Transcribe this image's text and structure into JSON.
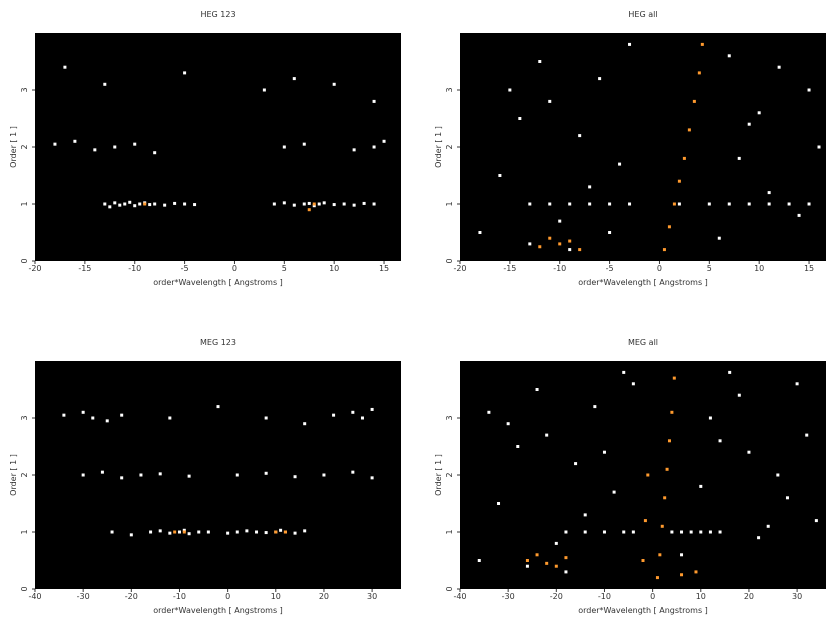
{
  "chart_data": [
    {
      "type": "scatter",
      "title": "HEG 123",
      "xlabel": "order*Wavelength [ Angstroms ]",
      "ylabel": "Order [ 1 ]",
      "xlim": [
        -20,
        16.7
      ],
      "ylim": [
        0,
        4
      ],
      "xticks": [
        -20,
        -15,
        -10,
        -5,
        0,
        5,
        10,
        15
      ],
      "yticks": [
        0,
        1,
        2,
        3
      ],
      "point_sets": [
        {
          "color": "#ffffff",
          "x": [
            -13,
            -12.5,
            -12,
            -11.5,
            -11,
            -10.5,
            -10,
            -9.5,
            -9,
            -8.5,
            -8,
            -7,
            -6,
            -5,
            -4,
            4,
            5,
            6,
            7,
            7.5,
            8,
            8.5,
            9,
            10,
            11,
            12,
            13,
            14,
            -18,
            -16,
            -14,
            -12,
            -10,
            -8,
            5,
            7,
            12,
            14,
            15,
            -17,
            -13,
            -5,
            3,
            6,
            10,
            14
          ],
          "y": [
            1,
            0.95,
            1.02,
            0.98,
            1,
            1.03,
            0.97,
            1,
            1.02,
            0.99,
            1,
            0.98,
            1.01,
            1,
            0.99,
            1,
            1.02,
            0.98,
            1,
            1.01,
            0.97,
            1,
            1.02,
            0.99,
            1,
            0.98,
            1.01,
            1,
            2.05,
            2.1,
            1.95,
            2,
            2.05,
            1.9,
            2,
            2.05,
            1.95,
            2,
            2.1,
            3.4,
            3.1,
            3.3,
            3.0,
            3.2,
            3.1,
            2.8
          ]
        },
        {
          "color": "#ff9a2e",
          "x": [
            -9,
            7.5,
            8
          ],
          "y": [
            1,
            0.9,
            1
          ]
        }
      ]
    },
    {
      "type": "scatter",
      "title": "HEG all",
      "xlabel": "order*Wavelength [ Angstroms ]",
      "ylabel": "Order [ 1 ]",
      "xlim": [
        -20,
        16.7
      ],
      "ylim": [
        0,
        4
      ],
      "xticks": [
        -20,
        -15,
        -10,
        -5,
        0,
        5,
        10,
        15
      ],
      "yticks": [
        0,
        1,
        2,
        3
      ],
      "point_sets": [
        {
          "color": "#ffffff",
          "x": [
            -13,
            -11,
            -9,
            -7,
            -5,
            -3,
            2,
            5,
            7,
            9,
            11,
            13,
            15,
            -18,
            -16,
            -14,
            -12,
            -10,
            -8,
            -6,
            -4,
            -15,
            -11,
            -7,
            -3,
            6,
            8,
            10,
            12,
            14,
            16,
            7,
            11,
            15,
            9,
            -13,
            -9,
            -5
          ],
          "y": [
            1,
            1,
            1,
            1,
            1,
            1,
            1,
            1,
            1,
            1,
            1,
            1,
            1,
            0.5,
            1.5,
            2.5,
            3.5,
            0.7,
            2.2,
            3.2,
            1.7,
            3.0,
            2.8,
            1.3,
            3.8,
            0.4,
            1.8,
            2.6,
            3.4,
            0.8,
            2.0,
            3.6,
            1.2,
            3.0,
            2.4,
            0.3,
            0.2,
            0.5
          ]
        },
        {
          "color": "#ff9a2e",
          "x": [
            0.5,
            1,
            1.5,
            2,
            2.5,
            3,
            3.5,
            4,
            4.3,
            -12,
            -10,
            -8,
            -11,
            -9
          ],
          "y": [
            0.2,
            0.6,
            1,
            1.4,
            1.8,
            2.3,
            2.8,
            3.3,
            3.8,
            0.25,
            0.3,
            0.2,
            0.4,
            0.35
          ]
        }
      ]
    },
    {
      "type": "scatter",
      "title": "MEG 123",
      "xlabel": "order*Wavelength [ Angstroms ]",
      "ylabel": "Order [ 1 ]",
      "xlim": [
        -40,
        36
      ],
      "ylim": [
        0,
        4
      ],
      "xticks": [
        -40,
        -30,
        -20,
        -10,
        0,
        10,
        20,
        30
      ],
      "yticks": [
        0,
        1,
        2,
        3
      ],
      "point_sets": [
        {
          "color": "#ffffff",
          "x": [
            -24,
            -20,
            -16,
            -14,
            -12,
            -10,
            -9,
            -8,
            -6,
            -4,
            0,
            2,
            4,
            6,
            8,
            10,
            11,
            12,
            14,
            16,
            -30,
            -26,
            -22,
            -18,
            -14,
            -8,
            2,
            8,
            14,
            20,
            26,
            30,
            -34,
            -30,
            -28,
            -25,
            -22,
            -12,
            -2,
            8,
            16,
            22,
            26,
            28,
            30
          ],
          "y": [
            1,
            0.95,
            1,
            1.02,
            0.98,
            1,
            1.03,
            0.97,
            1,
            1,
            0.98,
            1,
            1.02,
            1,
            0.99,
            1,
            1.03,
            1,
            0.98,
            1.02,
            2,
            2.05,
            1.95,
            2,
            2.02,
            1.98,
            2,
            2.03,
            1.97,
            2,
            2.05,
            1.95,
            3.05,
            3.1,
            3,
            2.95,
            3.05,
            3,
            3.2,
            3,
            2.9,
            3.05,
            3.1,
            3,
            3.15
          ]
        },
        {
          "color": "#ff9a2e",
          "x": [
            -11,
            -9,
            10,
            12
          ],
          "y": [
            1,
            1,
            1,
            1
          ]
        }
      ]
    },
    {
      "type": "scatter",
      "title": "MEG all",
      "xlabel": "order*Wavelength [ Angstroms ]",
      "ylabel": "Order [ 1 ]",
      "xlim": [
        -40,
        36
      ],
      "ylim": [
        0,
        4
      ],
      "xticks": [
        -40,
        -30,
        -20,
        -10,
        0,
        10,
        20,
        30
      ],
      "yticks": [
        0,
        1,
        2,
        3
      ],
      "point_sets": [
        {
          "color": "#ffffff",
          "x": [
            -18,
            -14,
            -10,
            -6,
            -4,
            4,
            6,
            8,
            10,
            12,
            14,
            -36,
            -32,
            -28,
            -24,
            -20,
            -16,
            -12,
            -8,
            -4,
            -30,
            -22,
            -14,
            -6,
            6,
            10,
            14,
            18,
            22,
            26,
            30,
            34,
            12,
            20,
            28,
            -26,
            -18,
            -34,
            -10,
            16,
            24,
            32
          ],
          "y": [
            1,
            1,
            1,
            1,
            1,
            1,
            1,
            1,
            1,
            1,
            1,
            0.5,
            1.5,
            2.5,
            3.5,
            0.8,
            2.2,
            3.2,
            1.7,
            3.6,
            2.9,
            2.7,
            1.3,
            3.8,
            0.6,
            1.8,
            2.6,
            3.4,
            0.9,
            2.0,
            3.6,
            1.2,
            3.0,
            2.4,
            1.6,
            0.4,
            0.3,
            3.1,
            2.4,
            3.8,
            1.1,
            2.7
          ]
        },
        {
          "color": "#ff9a2e",
          "x": [
            1,
            1.5,
            2,
            2.5,
            3,
            3.5,
            4,
            4.5,
            -2,
            -1.5,
            -1,
            -26,
            -24,
            -22,
            -20,
            -18,
            6,
            9
          ],
          "y": [
            0.2,
            0.6,
            1.1,
            1.6,
            2.1,
            2.6,
            3.1,
            3.7,
            0.5,
            1.2,
            2,
            0.5,
            0.6,
            0.45,
            0.4,
            0.55,
            0.25,
            0.3
          ]
        }
      ]
    }
  ]
}
